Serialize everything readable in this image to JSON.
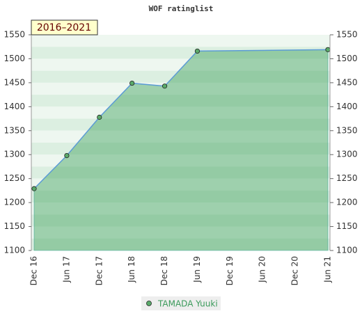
{
  "chart_data": {
    "type": "line",
    "title": "WOF ratinglist",
    "annotation": "2016–2021",
    "categories": [
      "Dec 16",
      "Jun 17",
      "Dec 17",
      "Jun 18",
      "Dec 18",
      "Jun 19",
      "Dec 19",
      "Jun 20",
      "Dec 20",
      "Jun 21"
    ],
    "series": [
      {
        "name": "TAMADA Yuuki",
        "color": "#5b9bd5",
        "marker_color": "#5aaa6a",
        "x": [
          "Dec 16",
          "Jun 17",
          "Dec 17",
          "Jun 18",
          "Dec 18",
          "Jun 19",
          "Jun 21"
        ],
        "values": [
          1229,
          1298,
          1378,
          1449,
          1443,
          1516,
          1519
        ]
      }
    ],
    "ylim": [
      1100,
      1550
    ],
    "yticks": [
      1100,
      1150,
      1200,
      1250,
      1300,
      1350,
      1400,
      1450,
      1500,
      1550
    ],
    "y2lim": [
      1100,
      1550
    ],
    "y2ticks": [
      1100,
      1150,
      1200,
      1250,
      1300,
      1350,
      1400,
      1450,
      1500,
      1550
    ]
  }
}
